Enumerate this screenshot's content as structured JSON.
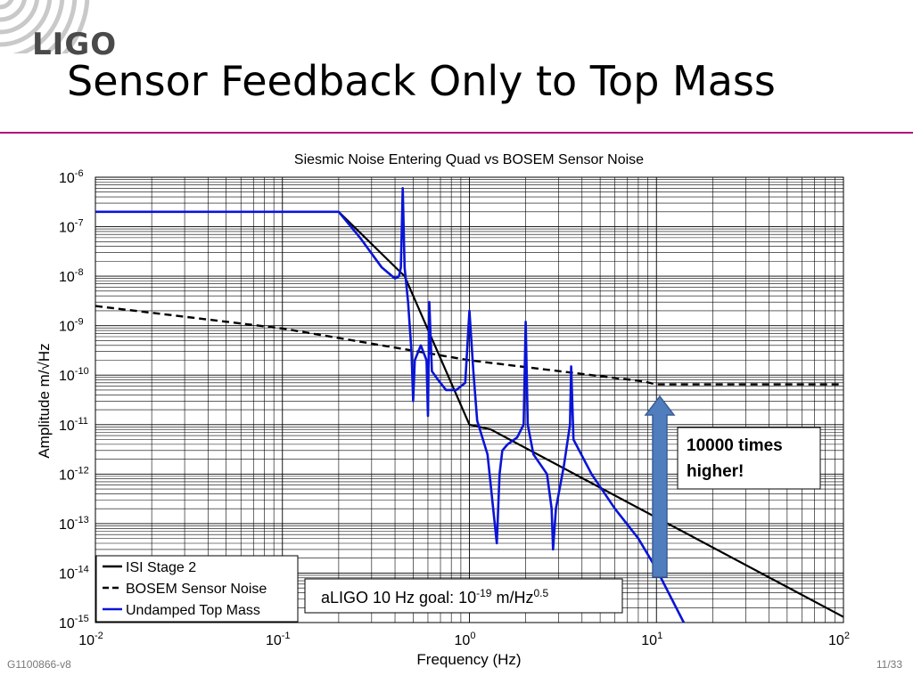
{
  "slide": {
    "logo_text": "LIGO",
    "title": "Sensor Feedback Only to Top Mass",
    "footer_left": "G1100866-v8",
    "footer_right": "11/33"
  },
  "annotations": {
    "callout_line1": "10000 times",
    "callout_line2": "higher!",
    "goal_prefix": "aLIGO 10 Hz goal: 10",
    "goal_exp": "-19",
    "goal_unit": " m/Hz",
    "goal_unit_exp": "0.5"
  },
  "colors": {
    "accent_rule": "#b0127e",
    "isi": "#000000",
    "bosem": "#000000",
    "undamped": "#0a14d6",
    "arrow": "#4f7dbd"
  },
  "chart_data": {
    "type": "line",
    "title": "Siesmic Noise Entering Quad vs BOSEM Sensor Noise",
    "xlabel": "Frequency (Hz)",
    "ylabel": "Amplitude m/√Hz",
    "xscale": "log",
    "yscale": "log",
    "xlim": [
      0.01,
      100
    ],
    "ylim": [
      1e-15,
      1e-06
    ],
    "grid": true,
    "legend_position": "bottom-left",
    "x_ticks": [
      {
        "value": 0.01,
        "base": "10",
        "exp": "-2"
      },
      {
        "value": 0.1,
        "base": "10",
        "exp": "-1"
      },
      {
        "value": 1,
        "base": "10",
        "exp": "0"
      },
      {
        "value": 10,
        "base": "10",
        "exp": "1"
      },
      {
        "value": 100,
        "base": "10",
        "exp": "2"
      }
    ],
    "y_ticks": [
      {
        "value": 1e-06,
        "base": "10",
        "exp": "-6"
      },
      {
        "value": 1e-07,
        "base": "10",
        "exp": "-7"
      },
      {
        "value": 1e-08,
        "base": "10",
        "exp": "-8"
      },
      {
        "value": 1e-09,
        "base": "10",
        "exp": "-9"
      },
      {
        "value": 1e-10,
        "base": "10",
        "exp": "-10"
      },
      {
        "value": 1e-11,
        "base": "10",
        "exp": "-11"
      },
      {
        "value": 1e-12,
        "base": "10",
        "exp": "-12"
      },
      {
        "value": 1e-13,
        "base": "10",
        "exp": "-13"
      },
      {
        "value": 1e-14,
        "base": "10",
        "exp": "-14"
      },
      {
        "value": 1e-15,
        "base": "10",
        "exp": "-15"
      }
    ],
    "series": [
      {
        "name": "ISI Stage 2",
        "style": "solid",
        "x": [
          0.01,
          0.2,
          0.45,
          1.0,
          1.3,
          100
        ],
        "y": [
          2e-07,
          2e-07,
          1e-08,
          1e-11,
          8e-12,
          1.3e-15
        ]
      },
      {
        "name": "BOSEM Sensor Noise",
        "style": "dashed",
        "x": [
          0.01,
          0.1,
          1,
          8.5,
          10,
          100
        ],
        "y": [
          2.5e-09,
          8.8e-10,
          2e-10,
          7.5e-11,
          6.5e-11,
          6.5e-11
        ]
      },
      {
        "name": "Undamped Top Mass",
        "style": "solid",
        "x": [
          0.01,
          0.2,
          0.26,
          0.34,
          0.4,
          0.42,
          0.43,
          0.44,
          0.45,
          0.47,
          0.49,
          0.5,
          0.51,
          0.55,
          0.59,
          0.6,
          0.61,
          0.63,
          0.68,
          0.75,
          0.85,
          0.95,
          1.0,
          1.05,
          1.1,
          1.25,
          1.4,
          1.45,
          1.5,
          1.6,
          1.8,
          1.95,
          2.0,
          2.05,
          2.2,
          2.6,
          2.75,
          2.8,
          2.9,
          3.2,
          3.45,
          3.5,
          3.6,
          4.5,
          6.0,
          8.0,
          10.0,
          14.0
        ],
        "y": [
          2e-07,
          2e-07,
          6e-08,
          1.5e-08,
          9e-09,
          1e-08,
          1.5e-08,
          6e-07,
          1.5e-08,
          3e-09,
          3e-10,
          3e-11,
          2e-10,
          4e-10,
          2e-10,
          1.5e-11,
          3e-09,
          1.2e-10,
          8e-11,
          5e-11,
          5e-11,
          7e-11,
          2e-09,
          1.2e-10,
          1.2e-11,
          2.5e-12,
          4e-14,
          1e-12,
          3e-12,
          4e-12,
          5.5e-12,
          1e-11,
          1.2e-09,
          1e-11,
          2.5e-12,
          1e-12,
          2e-13,
          3e-14,
          2e-13,
          1.5e-12,
          1e-11,
          1.5e-10,
          5e-12,
          1e-12,
          2e-13,
          5e-14,
          1.2e-14,
          1e-15
        ]
      }
    ]
  }
}
